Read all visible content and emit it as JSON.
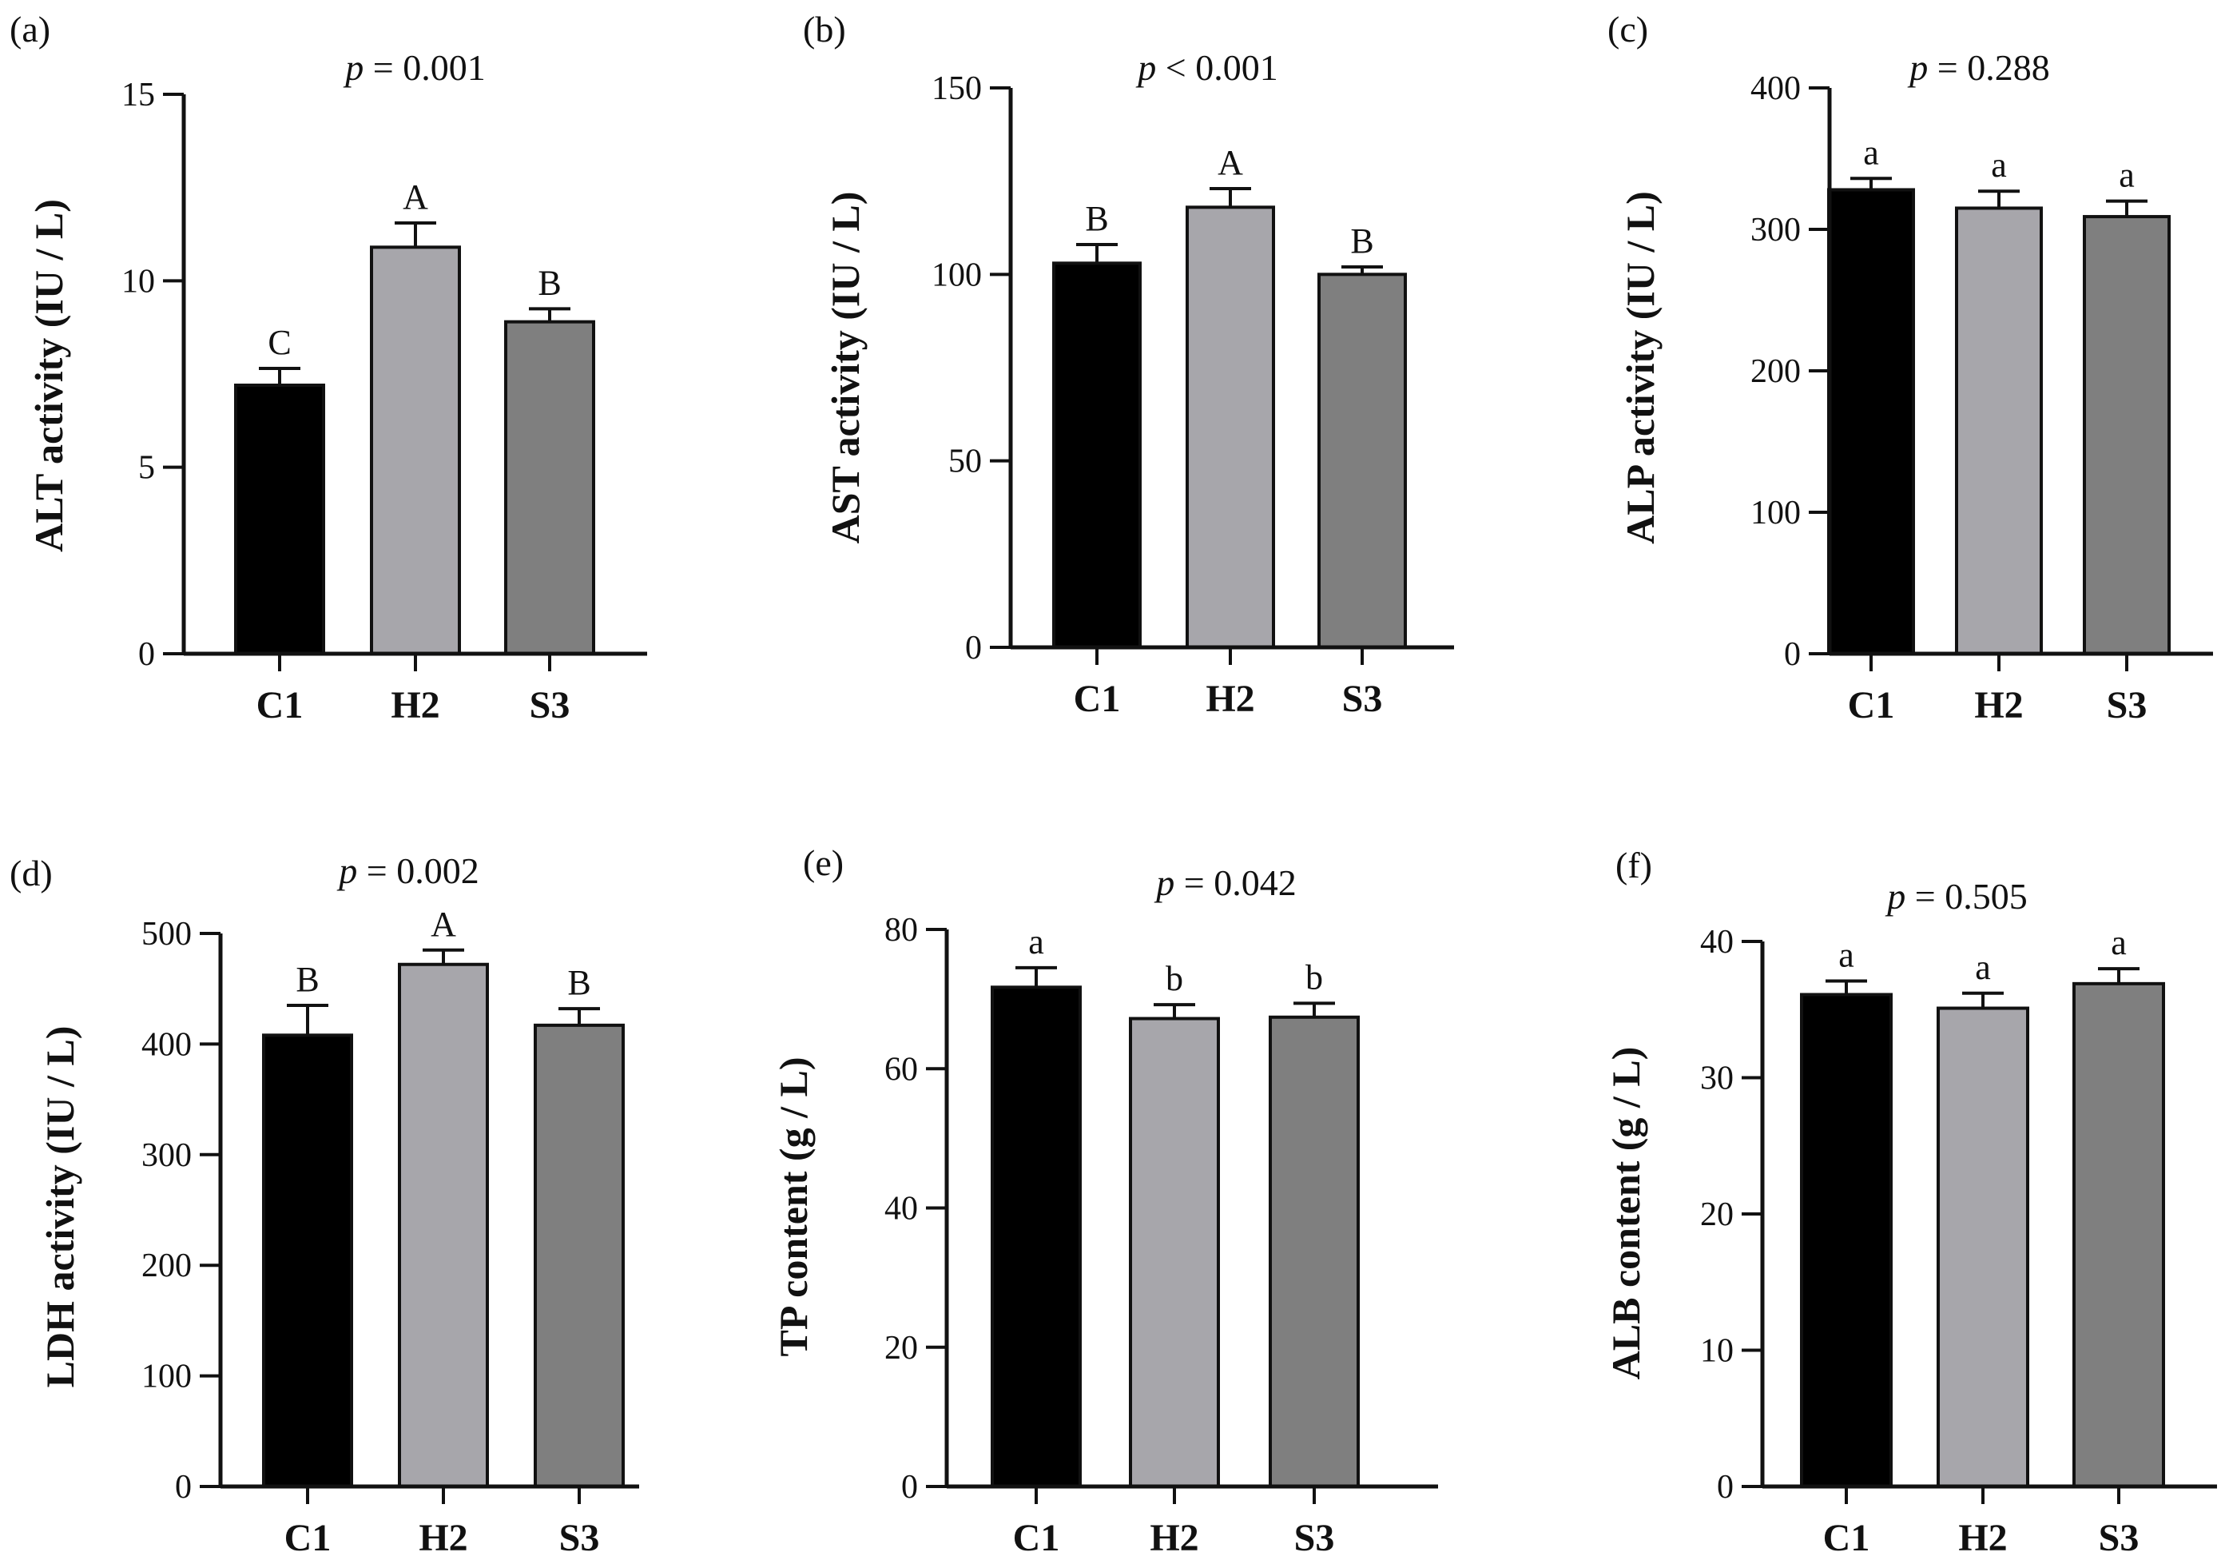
{
  "colors": {
    "C1": "#000000",
    "H2": "#a7a6ab",
    "S3": "#7f7f7f",
    "axis": "#111111",
    "errorbar": "#111111"
  },
  "chart_data": [
    {
      "panel": "(a)",
      "type": "bar",
      "p_prefix": "p",
      "p_rest": " = 0.001",
      "ylabel": "ALT activity (IU / L)",
      "categories": [
        "C1",
        "H2",
        "S3"
      ],
      "values": [
        7.2,
        10.9,
        8.9
      ],
      "errors": [
        0.45,
        0.65,
        0.35
      ],
      "letters": [
        "C",
        "A",
        "B"
      ],
      "ylim": [
        0,
        15
      ],
      "yticks": [
        0,
        5,
        10,
        15
      ],
      "ytick_labels": [
        "0",
        "5",
        "10",
        "15"
      ]
    },
    {
      "panel": "(b)",
      "type": "bar",
      "p_prefix": "p",
      "p_rest": " < 0.001",
      "ylabel": "AST activity (IU / L)",
      "categories": [
        "C1",
        "H2",
        "S3"
      ],
      "values": [
        103,
        118,
        100
      ],
      "errors": [
        5,
        5,
        2
      ],
      "letters": [
        "B",
        "A",
        "B"
      ],
      "ylim": [
        0,
        150
      ],
      "yticks": [
        0,
        50,
        100,
        150
      ],
      "ytick_labels": [
        "0",
        "50",
        "100",
        "150"
      ]
    },
    {
      "panel": "(c)",
      "type": "bar",
      "p_prefix": "p",
      "p_rest": " = 0.288",
      "ylabel": "ALP activity (IU / L)",
      "categories": [
        "C1",
        "H2",
        "S3"
      ],
      "values": [
        328,
        315,
        309
      ],
      "errors": [
        8,
        12,
        11
      ],
      "letters": [
        "a",
        "a",
        "a"
      ],
      "ylim": [
        0,
        400
      ],
      "yticks": [
        0,
        100,
        200,
        300,
        400
      ],
      "ytick_labels": [
        "0",
        "100",
        "200",
        "300",
        "400"
      ]
    },
    {
      "panel": "(d)",
      "type": "bar",
      "p_prefix": "p",
      "p_rest": " = 0.002",
      "ylabel": "LDH activity (IU / L)",
      "categories": [
        "C1",
        "H2",
        "S3"
      ],
      "values": [
        408,
        472,
        417
      ],
      "errors": [
        27,
        13,
        15
      ],
      "letters": [
        "B",
        "A",
        "B"
      ],
      "ylim": [
        0,
        500
      ],
      "yticks": [
        0,
        100,
        200,
        300,
        400,
        500
      ],
      "ytick_labels": [
        "0",
        "100",
        "200",
        "300",
        "400",
        "500"
      ]
    },
    {
      "panel": "(e)",
      "type": "bar",
      "p_prefix": "p",
      "p_rest": " = 0.042",
      "ylabel": "TP content (g / L)",
      "categories": [
        "C1",
        "H2",
        "S3"
      ],
      "values": [
        71.7,
        67.2,
        67.4
      ],
      "errors": [
        2.8,
        2.0,
        2.0
      ],
      "letters": [
        "a",
        "b",
        "b"
      ],
      "ylim": [
        0,
        80
      ],
      "yticks": [
        0,
        20,
        40,
        60,
        80
      ],
      "ytick_labels": [
        "0",
        "20",
        "40",
        "60",
        "80"
      ]
    },
    {
      "panel": "(f)",
      "type": "bar",
      "p_prefix": "p",
      "p_rest": " = 0.505",
      "ylabel": "ALB content (g / L)",
      "categories": [
        "C1",
        "H2",
        "S3"
      ],
      "values": [
        36.1,
        35.1,
        36.9
      ],
      "errors": [
        1.0,
        1.1,
        1.1
      ],
      "letters": [
        "a",
        "a",
        "a"
      ],
      "ylim": [
        0,
        40
      ],
      "yticks": [
        0,
        10,
        20,
        30,
        40
      ],
      "ytick_labels": [
        "0",
        "10",
        "20",
        "30",
        "40"
      ]
    }
  ]
}
